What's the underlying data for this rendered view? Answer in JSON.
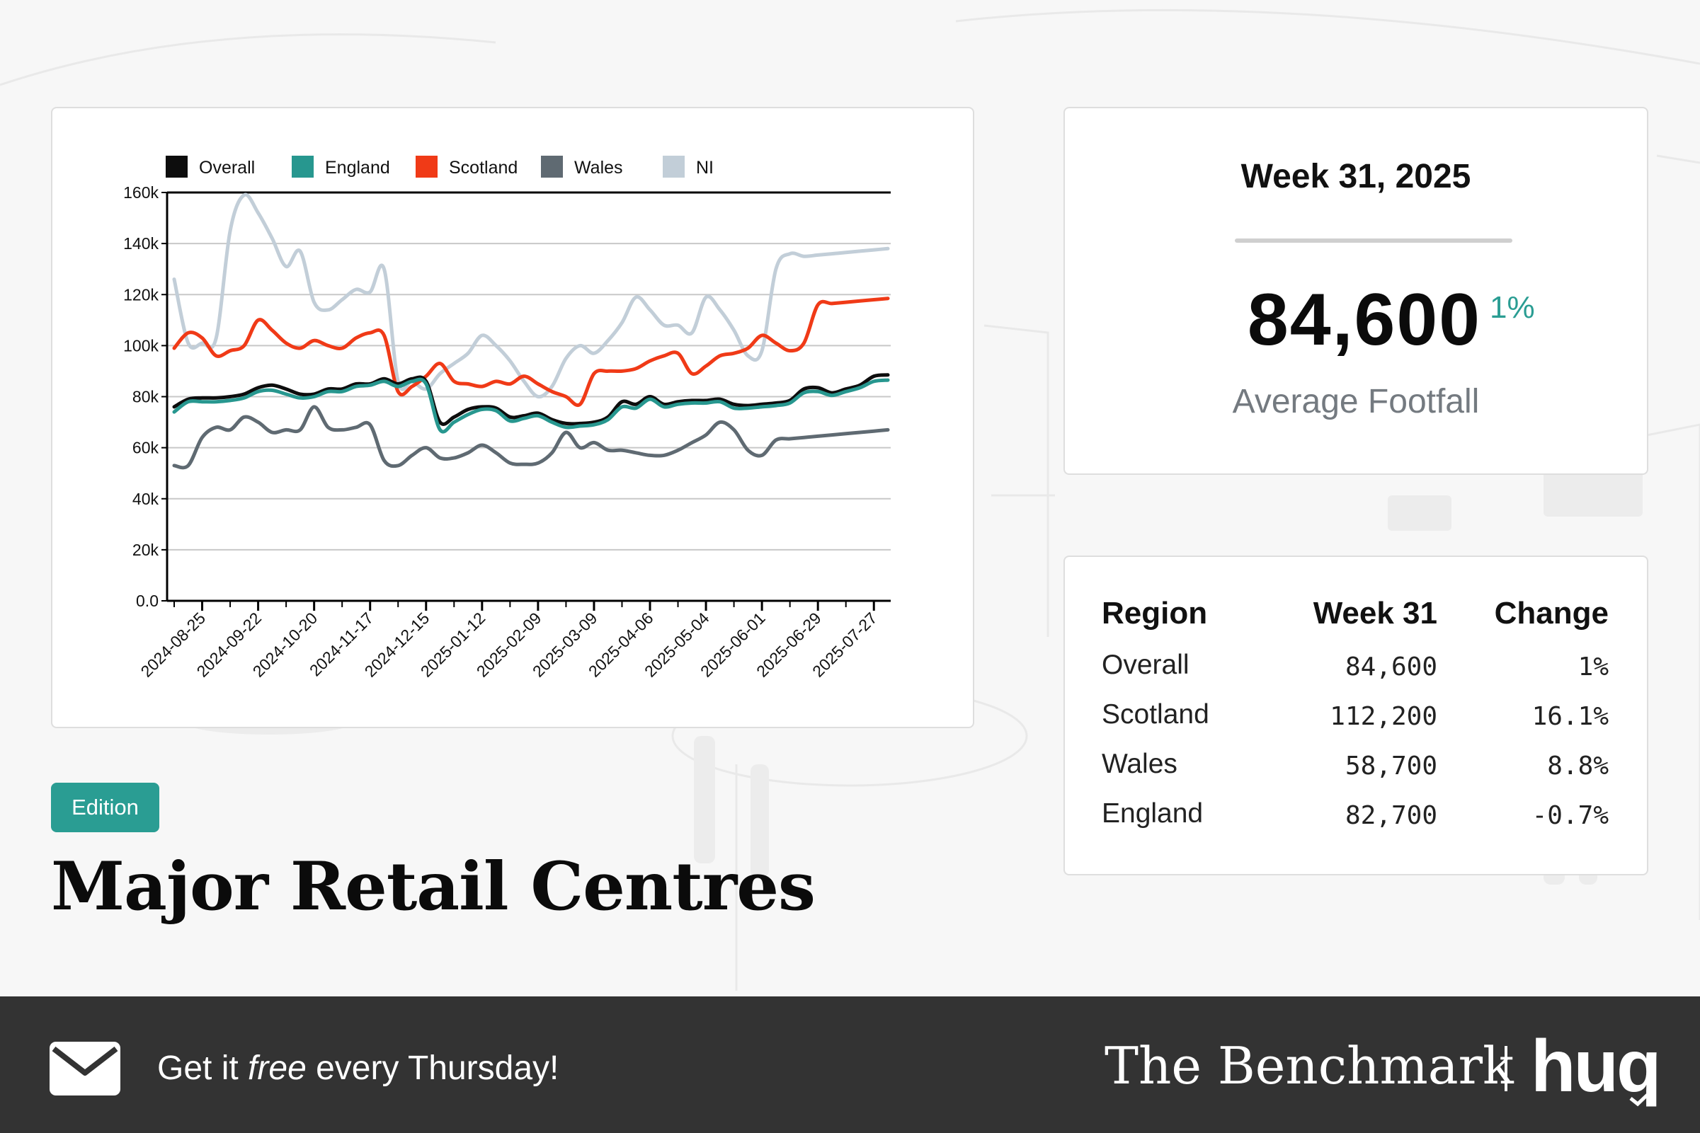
{
  "colors": {
    "overall": "#0d0d0d",
    "england": "#27978f",
    "scotland": "#f03a17",
    "wales": "#5f6a72",
    "ni": "#c2ced8",
    "accent": "#2a9d93",
    "footer_bg": "#333333"
  },
  "chart_data": {
    "type": "line",
    "x_dates": [
      "2024-08-11",
      "2024-08-18",
      "2024-08-25",
      "2024-09-01",
      "2024-09-08",
      "2024-09-15",
      "2024-09-22",
      "2024-09-29",
      "2024-10-06",
      "2024-10-13",
      "2024-10-20",
      "2024-10-27",
      "2024-11-03",
      "2024-11-10",
      "2024-11-17",
      "2024-11-24",
      "2024-12-01",
      "2024-12-08",
      "2024-12-15",
      "2024-12-22",
      "2024-12-29",
      "2025-01-05",
      "2025-01-12",
      "2025-01-19",
      "2025-01-26",
      "2025-02-02",
      "2025-02-09",
      "2025-02-16",
      "2025-02-23",
      "2025-03-02",
      "2025-03-09",
      "2025-03-16",
      "2025-03-23",
      "2025-03-30",
      "2025-04-06",
      "2025-04-13",
      "2025-04-20",
      "2025-04-27",
      "2025-05-04",
      "2025-05-11",
      "2025-05-18",
      "2025-05-25",
      "2025-06-01",
      "2025-06-08",
      "2025-06-15",
      "2025-06-22",
      "2025-06-29",
      "2025-07-06",
      "2025-07-13",
      "2025-07-20",
      "2025-07-27",
      "2025-08-03"
    ],
    "x_tick_labels": [
      "2024-08-25",
      "2024-09-22",
      "2024-10-20",
      "2024-11-17",
      "2024-12-15",
      "2025-01-12",
      "2025-02-09",
      "2025-03-09",
      "2025-04-06",
      "2025-05-04",
      "2025-06-01",
      "2025-06-29",
      "2025-07-27"
    ],
    "y_tick_labels": [
      "0.0",
      "20k",
      "40k",
      "60k",
      "80k",
      "100k",
      "120k",
      "140k",
      "160k"
    ],
    "ylim": [
      0,
      160000
    ],
    "grid": true,
    "legend_position": "top",
    "series": [
      {
        "name": "Overall",
        "values": [
          76000,
          79000,
          79500,
          79500,
          80000,
          81000,
          83500,
          84500,
          83000,
          81000,
          81000,
          83000,
          83000,
          85000,
          85000,
          87000,
          85000,
          87000,
          86000,
          70000,
          72000,
          75000,
          76000,
          75500,
          72000,
          72500,
          73500,
          71000,
          69500,
          69500,
          70000,
          72000,
          78000,
          77000,
          80000,
          77000,
          78000,
          78500,
          78500,
          79000,
          77000,
          76500,
          77000,
          77500,
          78500,
          83000,
          83500,
          81500,
          83000,
          84500,
          88000,
          88500
        ]
      },
      {
        "name": "England",
        "values": [
          74000,
          78000,
          78000,
          78000,
          78500,
          79500,
          82000,
          82500,
          81000,
          79500,
          80000,
          82000,
          82000,
          84000,
          84500,
          86000,
          84000,
          86000,
          85000,
          67000,
          70000,
          73000,
          75000,
          74500,
          70500,
          71500,
          72500,
          70000,
          68000,
          68500,
          69000,
          71000,
          76000,
          75500,
          79000,
          76000,
          77000,
          77500,
          77500,
          78000,
          75500,
          75500,
          76000,
          76500,
          77500,
          81500,
          82000,
          80500,
          82000,
          83500,
          86000,
          86500
        ]
      },
      {
        "name": "Scotland",
        "values": [
          99000,
          105000,
          103000,
          96000,
          98000,
          100000,
          110000,
          106000,
          101000,
          99000,
          102000,
          100000,
          99000,
          103000,
          105000,
          104000,
          82000,
          84000,
          88000,
          93000,
          86000,
          85000,
          84000,
          86000,
          85000,
          88000,
          85000,
          82000,
          80000,
          77000,
          89000,
          90000,
          90000,
          91000,
          94000,
          96000,
          97000,
          89000,
          92000,
          96000,
          97000,
          99000,
          104000,
          101000,
          98000,
          101000,
          116000,
          116500,
          117000,
          117500,
          118000,
          118500
        ]
      },
      {
        "name": "Wales",
        "values": [
          53000,
          53000,
          64000,
          68000,
          67000,
          72000,
          70000,
          66000,
          67000,
          67000,
          76000,
          68000,
          67000,
          68000,
          69000,
          55000,
          53000,
          57000,
          60000,
          56000,
          56000,
          58000,
          61000,
          58000,
          54000,
          53500,
          54000,
          58000,
          66000,
          60000,
          62000,
          59000,
          59000,
          58000,
          57000,
          57000,
          59000,
          62000,
          65000,
          70000,
          67000,
          59000,
          57000,
          63000,
          63500,
          64000,
          64500,
          65000,
          65500,
          66000,
          66500,
          67000
        ]
      },
      {
        "name": "NI",
        "values": [
          126000,
          101000,
          101000,
          103000,
          145000,
          159000,
          152000,
          142000,
          131000,
          137000,
          117000,
          114000,
          118000,
          122000,
          121000,
          130000,
          86000,
          86000,
          83000,
          89000,
          93000,
          97000,
          104000,
          100000,
          94000,
          86000,
          80000,
          84000,
          95000,
          100000,
          97000,
          102000,
          109000,
          119000,
          114000,
          108000,
          108000,
          105000,
          119000,
          114000,
          106000,
          96000,
          98000,
          130000,
          136000,
          135000,
          135500,
          136000,
          136500,
          137000,
          137500,
          138000
        ]
      }
    ]
  },
  "stat": {
    "week": "Week 31, 2025",
    "value": "84,600",
    "change": "1%",
    "caption": "Average Footfall"
  },
  "table": {
    "headers": [
      "Region",
      "Week 31",
      "Change"
    ],
    "rows": [
      {
        "region": "Overall",
        "value": "84,600",
        "change": "1%"
      },
      {
        "region": "Scotland",
        "value": "112,200",
        "change": "16.1%"
      },
      {
        "region": "Wales",
        "value": "58,700",
        "change": "8.8%"
      },
      {
        "region": "England",
        "value": "82,700",
        "change": "-0.7%"
      }
    ]
  },
  "edition_label": "Edition",
  "title": "Major Retail Centres",
  "footer": {
    "cta_before": "Get it ",
    "cta_em": "free",
    "cta_after": " every Thursday!",
    "brand": "The Benchmark",
    "logo": "huq",
    "mail_icon": "envelope-icon"
  }
}
